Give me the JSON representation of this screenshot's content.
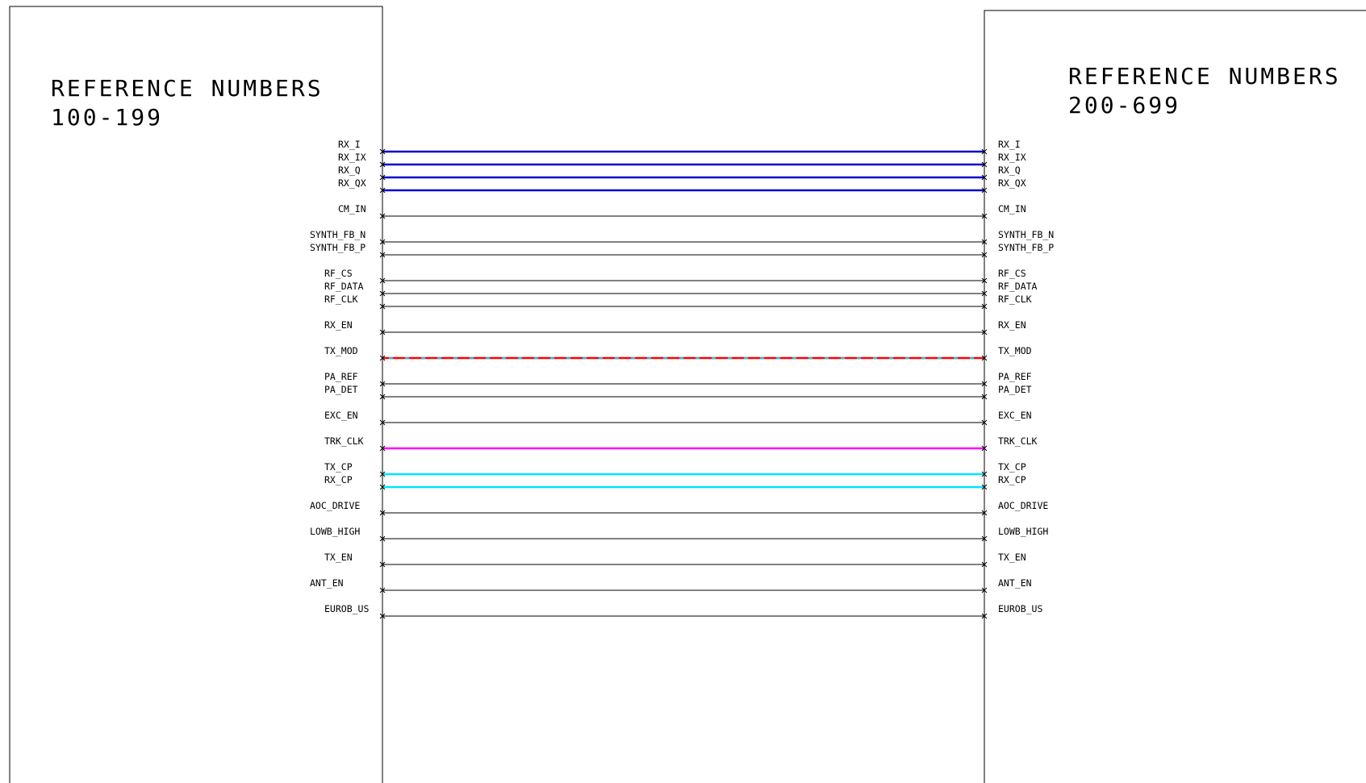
{
  "left_block": {
    "title": "REFERENCE NUMBERS",
    "range": "100-199"
  },
  "right_block": {
    "title": "REFERENCE NUMBERS",
    "range": "200-699"
  },
  "colors": {
    "default": "#000000",
    "blue": "#0000cc",
    "red": "#ff0000",
    "cyan_dash": "#30c0d0",
    "magenta": "#ff00ff",
    "cyan": "#00e5ff"
  },
  "nets": [
    {
      "name": "RX_I",
      "color": "blue",
      "style": "bold"
    },
    {
      "name": "RX_IX",
      "color": "blue",
      "style": "bold"
    },
    {
      "name": "RX_Q",
      "color": "blue",
      "style": "bold"
    },
    {
      "name": "RX_QX",
      "color": "blue",
      "style": "bold"
    },
    {
      "name": "CM_IN",
      "color": "default",
      "style": "thin"
    },
    {
      "name": "SYNTH_FB_N",
      "color": "default",
      "style": "thin"
    },
    {
      "name": "SYNTH_FB_P",
      "color": "default",
      "style": "thin"
    },
    {
      "name": "RF_CS",
      "color": "default",
      "style": "thin"
    },
    {
      "name": "RF_DATA",
      "color": "default",
      "style": "thin"
    },
    {
      "name": "RF_CLK",
      "color": "default",
      "style": "thin"
    },
    {
      "name": "RX_EN",
      "color": "default",
      "style": "thin"
    },
    {
      "name": "TX_MOD",
      "color": "red",
      "style": "dashed"
    },
    {
      "name": "PA_REF",
      "color": "default",
      "style": "thin"
    },
    {
      "name": "PA_DET",
      "color": "default",
      "style": "thin"
    },
    {
      "name": "EXC_EN",
      "color": "default",
      "style": "thin"
    },
    {
      "name": "TRK_CLK",
      "color": "magenta",
      "style": "bold"
    },
    {
      "name": "TX_CP",
      "color": "cyan",
      "style": "bold"
    },
    {
      "name": "RX_CP",
      "color": "cyan",
      "style": "bold"
    },
    {
      "name": "AOC_DRIVE",
      "color": "default",
      "style": "thin"
    },
    {
      "name": "LOWB_HIGH",
      "color": "default",
      "style": "thin"
    },
    {
      "name": "TX_EN",
      "color": "default",
      "style": "thin"
    },
    {
      "name": "ANT_EN",
      "color": "default",
      "style": "thin"
    },
    {
      "name": "EUROB_US",
      "color": "default",
      "style": "thin"
    }
  ]
}
